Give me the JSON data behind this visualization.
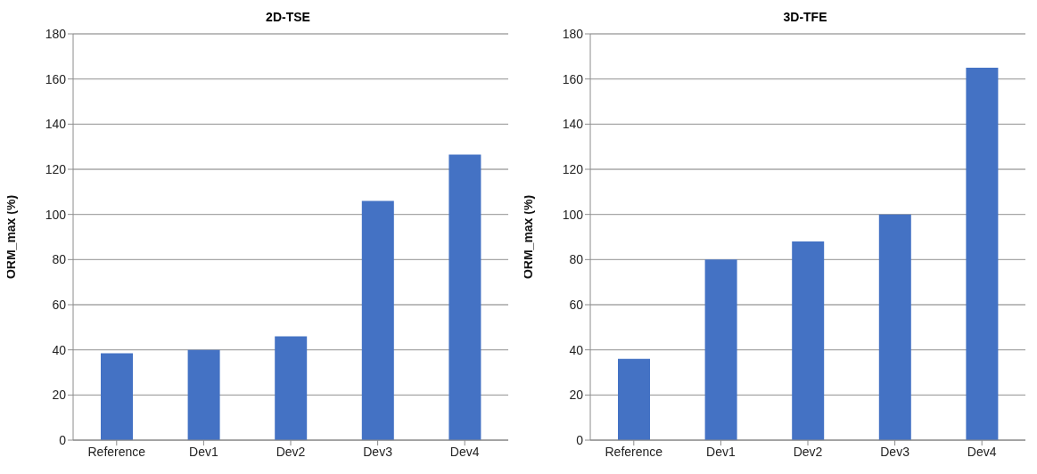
{
  "chart_data": [
    {
      "type": "bar",
      "title": "2D-TSE",
      "ylabel": "ORM_max (%)",
      "categories": [
        "Reference",
        "Dev1",
        "Dev2",
        "Dev3",
        "Dev4"
      ],
      "values": [
        38.5,
        40,
        46,
        106,
        126.5
      ],
      "color": "#4472c4",
      "ylim": [
        0,
        180
      ],
      "yticks": [
        0,
        20,
        40,
        60,
        80,
        100,
        120,
        140,
        160,
        180
      ],
      "grid": "y"
    },
    {
      "type": "bar",
      "title": "3D-TFE",
      "ylabel": "ORM_max (%)",
      "categories": [
        "Reference",
        "Dev1",
        "Dev2",
        "Dev3",
        "Dev4"
      ],
      "values": [
        36,
        80,
        88,
        100,
        165
      ],
      "color": "#4472c4",
      "ylim": [
        0,
        180
      ],
      "yticks": [
        0,
        20,
        40,
        60,
        80,
        100,
        120,
        140,
        160,
        180
      ],
      "grid": "y"
    }
  ]
}
